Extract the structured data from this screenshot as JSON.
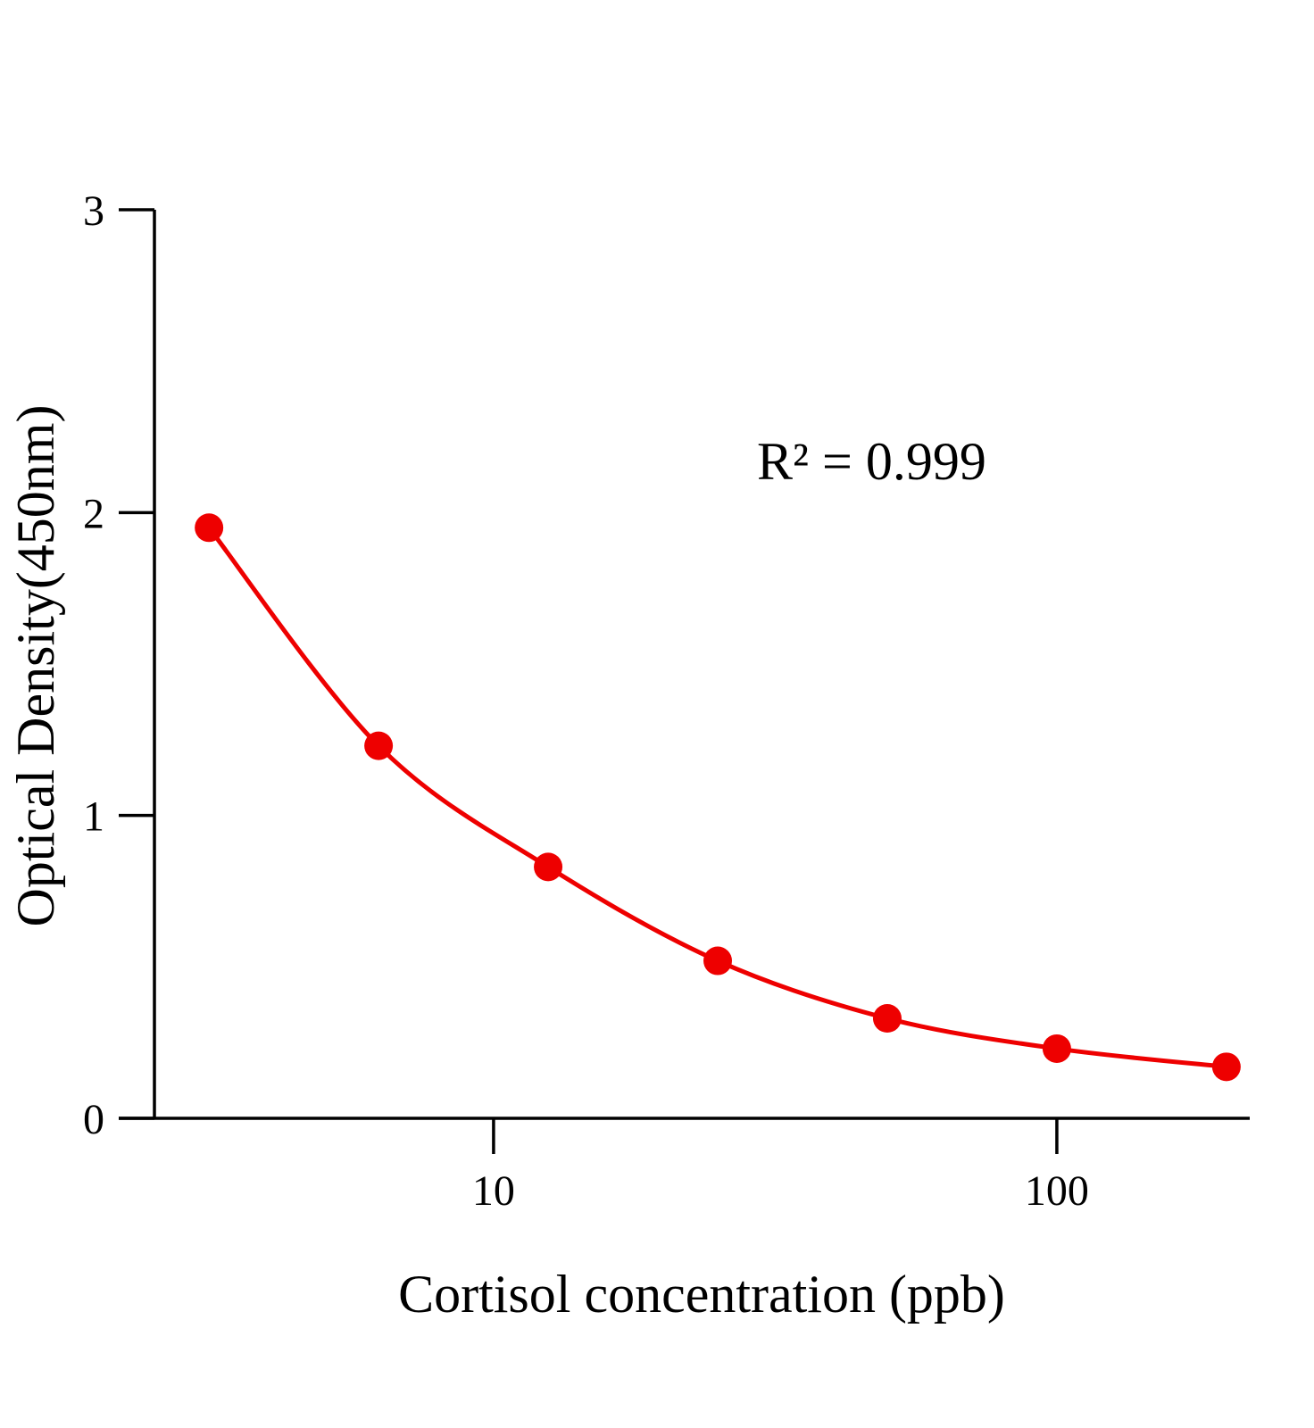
{
  "chart_data": {
    "type": "scatter",
    "title": "",
    "xlabel": "Cortisol concentration (ppb)",
    "ylabel": "Optical Density(450nm)",
    "x_scale": "log",
    "xlim": [
      2.5,
      220
    ],
    "ylim": [
      0,
      3
    ],
    "x_ticks": [
      10,
      100
    ],
    "x_tick_labels": [
      "10",
      "100"
    ],
    "y_ticks": [
      0,
      1,
      2,
      3
    ],
    "y_tick_labels": [
      "0",
      "1",
      "2",
      "3"
    ],
    "grid": false,
    "legend": "none",
    "annotation": "R² = 0.999",
    "series": [
      {
        "x": [
          3.125,
          6.25,
          12.5,
          25,
          50,
          100,
          200
        ],
        "y": [
          1.95,
          1.23,
          0.83,
          0.52,
          0.33,
          0.23,
          0.17
        ],
        "marker": "circle",
        "fit_line": "smooth curve"
      }
    ],
    "colors": {
      "series": "#ee0000",
      "axis": "#000000"
    }
  }
}
